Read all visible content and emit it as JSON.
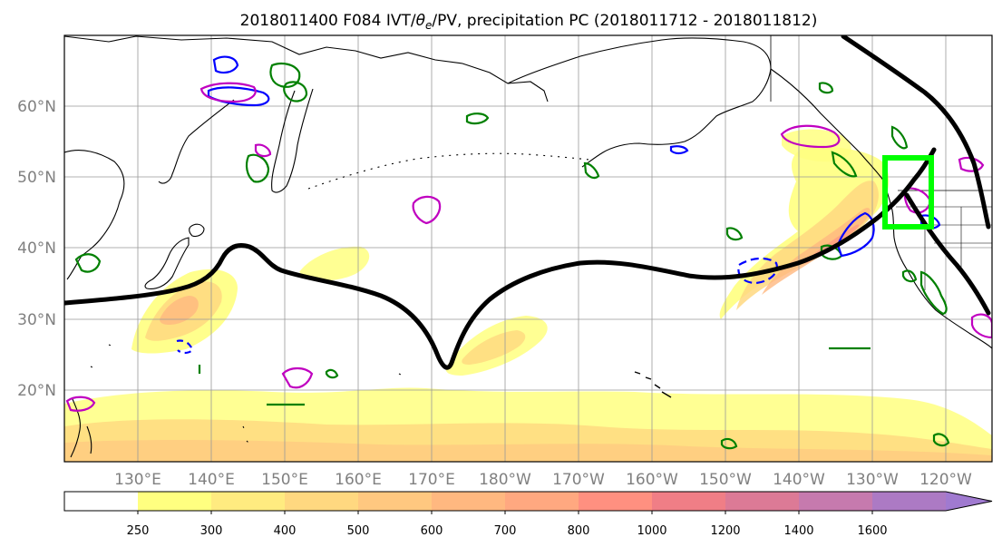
{
  "title": "2018011400 F084 IVT/θe/PV, precipitation PC (2018011712 - 2018011812)",
  "title_parts": {
    "prefix": "2018011400 F084 IVT/",
    "theta": "θ",
    "theta_sub": "e",
    "suffix": "/PV, precipitation PC (2018011712 - 2018011812)"
  },
  "map": {
    "lat_labels": [
      "60°N",
      "50°N",
      "40°N",
      "30°N",
      "20°N"
    ],
    "lon_labels": [
      "130°E",
      "140°E",
      "150°E",
      "160°E",
      "170°E",
      "180°W",
      "170°W",
      "160°W",
      "150°W",
      "140°W",
      "130°W",
      "120°W"
    ],
    "colors": {
      "jet_contour": "#000000",
      "theta_e_contour": "#008000",
      "pv_contour_blue": "#0000ff",
      "pv_contour_magenta": "#c000c0",
      "target_box": "#00ff00",
      "grid": "#999999",
      "coastline": "#000000"
    }
  },
  "colorbar": {
    "levels": [
      "250",
      "300",
      "400",
      "500",
      "600",
      "700",
      "800",
      "1000",
      "1200",
      "1400",
      "1600"
    ],
    "colors": [
      "#ffff80",
      "#ffeb80",
      "#ffd880",
      "#ffc880",
      "#ffb880",
      "#ffa880",
      "#ff9080",
      "#f07e86",
      "#dc7a96",
      "#c67aae",
      "#ac7ac4",
      "#a07ad0"
    ],
    "extend": "max"
  }
}
